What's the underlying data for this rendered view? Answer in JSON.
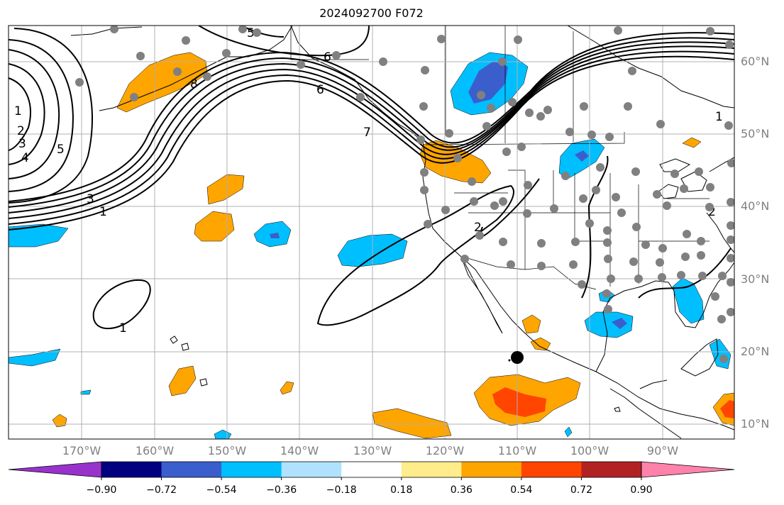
{
  "title": "2024092700 F072",
  "lat_labels": [
    "60°N",
    "50°N",
    "40°N",
    "30°N",
    "20°N",
    "10°N"
  ],
  "lon_labels": [
    "170°W",
    "160°W",
    "150°W",
    "140°W",
    "130°W",
    "120°W",
    "110°W",
    "100°W",
    "90°W"
  ],
  "colorbar": {
    "tick_labels": [
      "−0.90",
      "−0.72",
      "−0.54",
      "−0.36",
      "−0.18",
      "0.18",
      "0.36",
      "0.54",
      "0.72",
      "0.90"
    ],
    "colors": [
      "#9932cc",
      "#000080",
      "#3a5fcd",
      "#00bfff",
      "#b0e2ff",
      "#ffffff",
      "#ffec8b",
      "#ffa500",
      "#ff4500",
      "#b22222",
      "#ff82ab"
    ]
  },
  "contour_labels": [
    "1",
    "2",
    "3",
    "4",
    "5",
    "6",
    "6",
    "7",
    "8",
    "5",
    "3",
    "1",
    "2",
    "1",
    "1",
    "2"
  ],
  "colors": {
    "land_outline": "#000000",
    "grid": "#b0b0b0",
    "station": "#808080",
    "contour": "#000000"
  }
}
